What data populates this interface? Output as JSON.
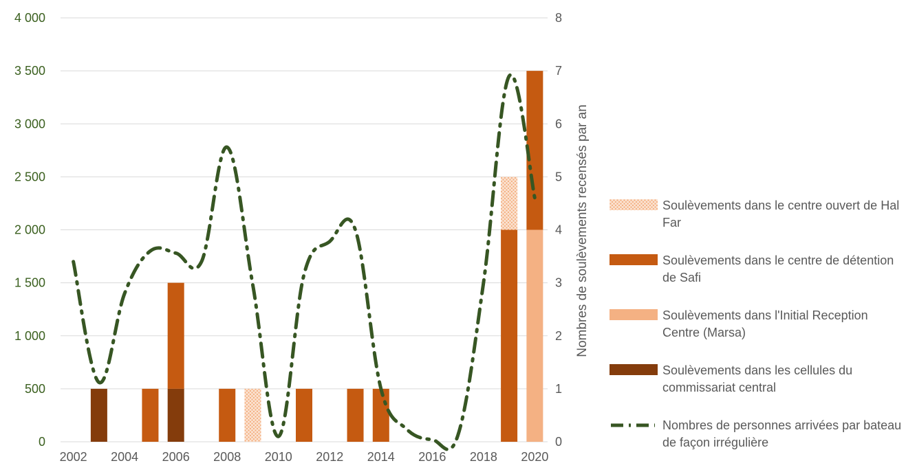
{
  "chart_data": {
    "type": "bar",
    "x_ticks": [
      "2002",
      "2004",
      "2006",
      "2008",
      "2010",
      "2012",
      "2014",
      "2016",
      "2018",
      "2020"
    ],
    "left_axis": {
      "ticks": [
        "0",
        "500",
        "1 000",
        "1 500",
        "2 000",
        "2 500",
        "3 000",
        "3 500",
        "4 000"
      ],
      "min": 0,
      "max": 4000
    },
    "right_axis": {
      "label": "Nombres de soulèvements recensés par an",
      "ticks": [
        "0",
        "1",
        "2",
        "3",
        "4",
        "5",
        "6",
        "7",
        "8"
      ],
      "min": 0,
      "max": 8
    },
    "years": [
      2002,
      2003,
      2004,
      2005,
      2006,
      2007,
      2008,
      2009,
      2010,
      2011,
      2012,
      2013,
      2014,
      2015,
      2016,
      2017,
      2018,
      2019,
      2020
    ],
    "stack_order": [
      "commissariat",
      "marsa",
      "safi",
      "halfar"
    ],
    "series": [
      {
        "key": "halfar",
        "name": "Soulèvements dans le centre ouvert de Hal Far",
        "color": "#f4b183",
        "pattern": "dots",
        "values": [
          0,
          0,
          0,
          0,
          0,
          0,
          0,
          1,
          0,
          0,
          0,
          0,
          0,
          0,
          0,
          0,
          0,
          1,
          0
        ]
      },
      {
        "key": "safi",
        "name": "Soulèvements dans le centre de détention de Safi",
        "color": "#c55a11",
        "values": [
          0,
          0,
          0,
          1,
          2,
          0,
          1,
          0,
          0,
          1,
          0,
          1,
          1,
          0,
          0,
          0,
          0,
          4,
          3
        ]
      },
      {
        "key": "marsa",
        "name": "Soulèvements dans l'Initial Reception Centre (Marsa)",
        "color": "#f4b183",
        "values": [
          0,
          0,
          0,
          0,
          0,
          0,
          0,
          0,
          0,
          0,
          0,
          0,
          0,
          0,
          0,
          0,
          0,
          0,
          4
        ]
      },
      {
        "key": "commissariat",
        "name": "Soulèvements dans les cellules du commissariat central",
        "color": "#843c0c",
        "values": [
          0,
          1,
          0,
          0,
          1,
          0,
          0,
          0,
          0,
          0,
          0,
          0,
          0,
          0,
          0,
          0,
          0,
          0,
          0
        ]
      }
    ],
    "line": {
      "name": "Nombres de personnes arrivées par bateau de façon irrégulière",
      "color": "#375623",
      "values": [
        1700,
        560,
        1400,
        1800,
        1780,
        1700,
        2780,
        1480,
        50,
        1580,
        1890,
        2000,
        500,
        120,
        20,
        60,
        1500,
        3450,
        2300
      ]
    }
  }
}
